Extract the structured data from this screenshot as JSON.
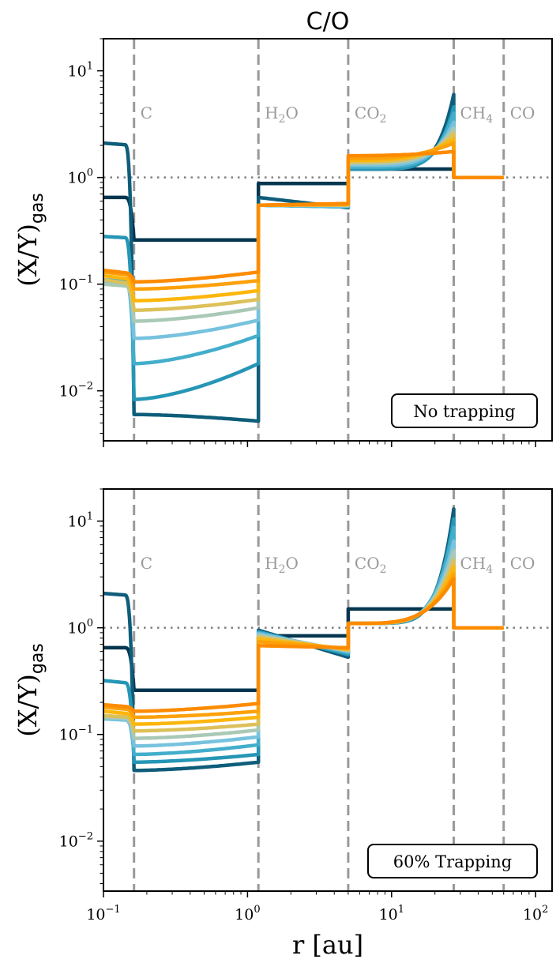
{
  "chart_data": {
    "type": "line",
    "title": "C/O",
    "xlabel": "r [au]",
    "ylabel": "(X/Y)_gas",
    "xscale": "log",
    "yscale": "log",
    "xlim": [
      0.1,
      130
    ],
    "ylim": [
      0.0034,
      20
    ],
    "x_ticks": [
      {
        "value": 0.1,
        "base": "10",
        "exp": "−1"
      },
      {
        "value": 1,
        "base": "10",
        "exp": "0"
      },
      {
        "value": 10,
        "base": "10",
        "exp": "1"
      },
      {
        "value": 100,
        "base": "10",
        "exp": "2"
      }
    ],
    "y_ticks": [
      {
        "value": 0.01,
        "base": "10",
        "exp": "−2"
      },
      {
        "value": 0.1,
        "base": "10",
        "exp": "−1"
      },
      {
        "value": 1,
        "base": "10",
        "exp": "0"
      },
      {
        "value": 10,
        "base": "10",
        "exp": "1"
      }
    ],
    "reference_line": {
      "y": 1,
      "style": "dotted",
      "color": "#808080"
    },
    "snowlines": [
      {
        "name": "C",
        "r": 0.163,
        "label_main": "C",
        "label_sub": ""
      },
      {
        "name": "H2O",
        "r": 1.19,
        "label_main": "H",
        "label_sub": "2",
        "label_tail": "O"
      },
      {
        "name": "CO2",
        "r": 5.0,
        "label_main": "CO",
        "label_sub": "2",
        "label_tail": ""
      },
      {
        "name": "CH4",
        "r": 27.0,
        "label_main": "CH",
        "label_sub": "4",
        "label_tail": ""
      },
      {
        "name": "CO",
        "r": 60.0,
        "label_main": "CO",
        "label_sub": "",
        "label_tail": ""
      }
    ],
    "series_colors": [
      "#05364f",
      "#0e5d7a",
      "#1a7f9c",
      "#2596b5",
      "#43aecb",
      "#77c2de",
      "#a9c9b6",
      "#dcc05a",
      "#fdb60b",
      "#fda10a",
      "#fd8b00"
    ],
    "panels": [
      {
        "name": "no-trapping",
        "box_label": "No trapping",
        "series": [
          {
            "name": "s0",
            "color_index": 0,
            "zones": [
              [
                0.65,
                0.65
              ],
              [
                0.26,
                0.26
              ],
              [
                0.88,
                0.88
              ],
              [
                1.2,
                1.2
              ],
              [
                1.0,
                1.0
              ]
            ]
          },
          {
            "name": "s1",
            "color_index": 1,
            "zones": [
              [
                2.1,
                2.0
              ],
              [
                0.006,
                0.0052
              ],
              [
                0.65,
                0.52
              ],
              [
                1.2,
                6.0
              ],
              [
                1.0,
                1.0
              ]
            ],
            "peak": 0.93
          },
          {
            "name": "s2",
            "color_index": 3,
            "zones": [
              [
                0.28,
                0.27
              ],
              [
                0.0083,
                0.018
              ],
              [
                0.55,
                0.53
              ],
              [
                1.2,
                4.6
              ],
              [
                1.0,
                1.0
              ]
            ],
            "peak": 0.88
          },
          {
            "name": "s3",
            "color_index": 4,
            "zones": [
              [
                0.11,
                0.105
              ],
              [
                0.018,
                0.033
              ],
              [
                0.55,
                0.53
              ],
              [
                1.25,
                4.0
              ],
              [
                1.0,
                1.0
              ]
            ],
            "peak": 0.8
          },
          {
            "name": "s4",
            "color_index": 5,
            "zones": [
              [
                0.105,
                0.1
              ],
              [
                0.031,
                0.046
              ],
              [
                0.55,
                0.54
              ],
              [
                1.3,
                3.3
              ],
              [
                1.0,
                1.0
              ]
            ],
            "peak": 0.7
          },
          {
            "name": "s5",
            "color_index": 6,
            "zones": [
              [
                0.1,
                0.095
              ],
              [
                0.045,
                0.06
              ],
              [
                0.55,
                0.55
              ],
              [
                1.35,
                2.9
              ],
              [
                1.0,
                1.0
              ]
            ],
            "peak": 0.6
          },
          {
            "name": "s6",
            "color_index": 7,
            "zones": [
              [
                0.11,
                0.1
              ],
              [
                0.057,
                0.072
              ],
              [
                0.55,
                0.55
              ],
              [
                1.4,
                2.6
              ],
              [
                1.0,
                1.0
              ]
            ],
            "peak": 0.5
          },
          {
            "name": "s7",
            "color_index": 8,
            "zones": [
              [
                0.12,
                0.11
              ],
              [
                0.07,
                0.087
              ],
              [
                0.55,
                0.56
              ],
              [
                1.45,
                2.3
              ],
              [
                1.0,
                1.0
              ]
            ],
            "peak": 0.4
          },
          {
            "name": "s8",
            "color_index": 9,
            "zones": [
              [
                0.13,
                0.12
              ],
              [
                0.09,
                0.108
              ],
              [
                0.55,
                0.56
              ],
              [
                1.5,
                2.1
              ],
              [
                1.0,
                1.0
              ]
            ],
            "peak": 0.3
          },
          {
            "name": "s9",
            "color_index": 10,
            "zones": [
              [
                0.135,
                0.125
              ],
              [
                0.105,
                0.13
              ],
              [
                0.55,
                0.57
              ],
              [
                1.6,
                1.75
              ],
              [
                1.0,
                1.0
              ]
            ],
            "peak": 0.2
          }
        ]
      },
      {
        "name": "60-trapping",
        "box_label": "60% Trapping",
        "series": [
          {
            "name": "s0",
            "color_index": 0,
            "zones": [
              [
                0.65,
                0.65
              ],
              [
                0.26,
                0.26
              ],
              [
                0.84,
                0.84
              ],
              [
                1.5,
                1.5
              ],
              [
                1.0,
                1.0
              ]
            ]
          },
          {
            "name": "s1",
            "color_index": 1,
            "zones": [
              [
                2.1,
                2.0
              ],
              [
                0.046,
                0.055
              ],
              [
                0.95,
                0.53
              ],
              [
                1.1,
                13.0
              ],
              [
                1.0,
                1.0
              ]
            ],
            "peak": 0.95
          },
          {
            "name": "s2",
            "color_index": 3,
            "zones": [
              [
                0.32,
                0.3
              ],
              [
                0.055,
                0.065
              ],
              [
                0.92,
                0.56
              ],
              [
                1.1,
                10.5
              ],
              [
                1.0,
                1.0
              ]
            ],
            "peak": 0.9
          },
          {
            "name": "s3",
            "color_index": 4,
            "zones": [
              [
                0.15,
                0.14
              ],
              [
                0.065,
                0.08
              ],
              [
                0.9,
                0.58
              ],
              [
                1.1,
                8.7
              ],
              [
                1.0,
                1.0
              ]
            ],
            "peak": 0.8
          },
          {
            "name": "s4",
            "color_index": 5,
            "zones": [
              [
                0.14,
                0.135
              ],
              [
                0.078,
                0.095
              ],
              [
                0.88,
                0.6
              ],
              [
                1.1,
                6.5
              ],
              [
                1.0,
                1.0
              ]
            ],
            "peak": 0.75
          },
          {
            "name": "s5",
            "color_index": 6,
            "zones": [
              [
                0.145,
                0.14
              ],
              [
                0.092,
                0.11
              ],
              [
                0.85,
                0.61
              ],
              [
                1.1,
                5.3
              ],
              [
                1.0,
                1.0
              ]
            ],
            "peak": 0.7
          },
          {
            "name": "s6",
            "color_index": 7,
            "zones": [
              [
                0.15,
                0.145
              ],
              [
                0.108,
                0.125
              ],
              [
                0.82,
                0.62
              ],
              [
                1.1,
                4.3
              ],
              [
                1.0,
                1.0
              ]
            ],
            "peak": 0.65
          },
          {
            "name": "s7",
            "color_index": 8,
            "zones": [
              [
                0.165,
                0.155
              ],
              [
                0.125,
                0.145
              ],
              [
                0.78,
                0.63
              ],
              [
                1.1,
                3.7
              ],
              [
                1.0,
                1.0
              ]
            ],
            "peak": 0.6
          },
          {
            "name": "s8",
            "color_index": 9,
            "zones": [
              [
                0.18,
                0.17
              ],
              [
                0.145,
                0.165
              ],
              [
                0.74,
                0.64
              ],
              [
                1.1,
                3.2
              ],
              [
                1.0,
                1.0
              ]
            ],
            "peak": 0.55
          },
          {
            "name": "s9",
            "color_index": 10,
            "zones": [
              [
                0.19,
                0.18
              ],
              [
                0.165,
                0.195
              ],
              [
                0.68,
                0.65
              ],
              [
                1.1,
                2.9
              ],
              [
                1.0,
                1.0
              ]
            ],
            "peak": 0.5
          }
        ]
      }
    ]
  }
}
